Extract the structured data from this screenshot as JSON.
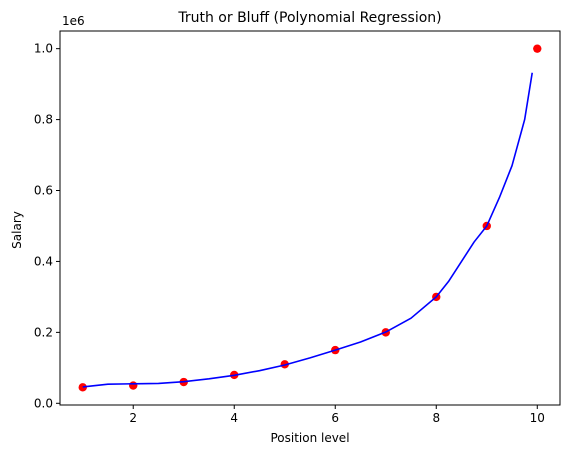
{
  "chart_data": {
    "type": "scatter",
    "title": "Truth or Bluff (Polynomial Regression)",
    "xlabel": "Position level",
    "ylabel": "Salary",
    "offset_label": "1e6",
    "xlim": [
      0.55,
      10.45
    ],
    "ylim": [
      -0.0048,
      1.0498
    ],
    "xticks": [
      2,
      4,
      6,
      8,
      10
    ],
    "xtick_labels": [
      "2",
      "4",
      "6",
      "8",
      "10"
    ],
    "yticks": [
      0.0,
      0.2,
      0.4,
      0.6,
      0.8,
      1.0
    ],
    "ytick_labels": [
      "0.0",
      "0.2",
      "0.4",
      "0.6",
      "0.8",
      "1.0"
    ],
    "grid": false,
    "series": [
      {
        "kind": "scatter",
        "color": "#ff0000",
        "x": [
          1,
          2,
          3,
          4,
          5,
          6,
          7,
          8,
          9,
          10
        ],
        "y": [
          0.045,
          0.05,
          0.06,
          0.08,
          0.11,
          0.15,
          0.2,
          0.3,
          0.5,
          1.0
        ]
      },
      {
        "kind": "line",
        "color": "#0000ff",
        "x": [
          1.0,
          1.5,
          2.0,
          2.5,
          3.0,
          3.5,
          4.0,
          4.5,
          5.0,
          5.5,
          6.0,
          6.5,
          7.0,
          7.5,
          8.0,
          8.25,
          8.5,
          8.75,
          9.0,
          9.25,
          9.5,
          9.75,
          9.9
        ],
        "y": [
          0.046,
          0.054,
          0.055,
          0.056,
          0.061,
          0.069,
          0.079,
          0.092,
          0.108,
          0.128,
          0.15,
          0.173,
          0.201,
          0.24,
          0.3,
          0.345,
          0.4,
          0.455,
          0.5,
          0.58,
          0.67,
          0.8,
          0.932
        ]
      }
    ]
  }
}
